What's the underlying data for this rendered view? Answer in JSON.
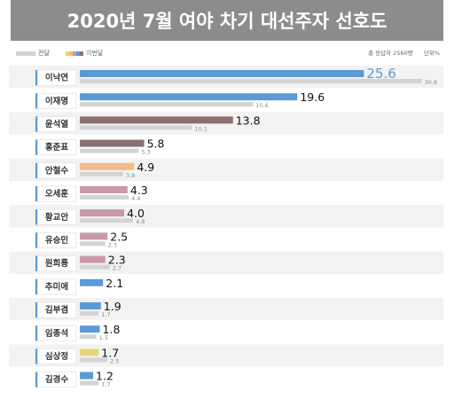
{
  "header": {
    "title": "2020년 7월 여야 차기 대선주자 선호도"
  },
  "legend": {
    "prev_label": "전달",
    "curr_label": "이번달",
    "prev_color": "#d3d3d3",
    "curr_colors": [
      "#e8d47a",
      "#f5b98a",
      "#c99aa5",
      "#5b9bd5",
      "#8a7070"
    ]
  },
  "meta": {
    "respondents": "총 응답자 2560명",
    "unit": "단위%"
  },
  "chart_data": {
    "type": "bar",
    "orientation": "horizontal",
    "title": "2020년 7월 여야 차기 대선주자 선호도",
    "categories": [
      "이낙연",
      "이재명",
      "윤석열",
      "홍준표",
      "안철수",
      "오세훈",
      "황교안",
      "유승민",
      "원희룡",
      "추미애",
      "김부겸",
      "임종석",
      "심상정",
      "김경수"
    ],
    "series": [
      {
        "name": "이번달",
        "values": [
          25.6,
          19.6,
          13.8,
          5.8,
          4.9,
          4.3,
          4.0,
          2.5,
          2.3,
          2.1,
          1.9,
          1.8,
          1.7,
          1.2
        ],
        "labels": [
          "25.6",
          "19.6",
          "13.8",
          "5.8",
          "4.9",
          "4.3",
          "4.0",
          "2.5",
          "2.3",
          "2.1",
          "1.9",
          "1.8",
          "1.7",
          "1.2"
        ],
        "colors": [
          "#5b9bd5",
          "#5b9bd5",
          "#8a7070",
          "#8a7070",
          "#f5b98a",
          "#c99aa5",
          "#c99aa5",
          "#c99aa5",
          "#c99aa5",
          "#5b9bd5",
          "#5b9bd5",
          "#5b9bd5",
          "#e8d47a",
          "#5b9bd5"
        ]
      },
      {
        "name": "전달",
        "values": [
          30.8,
          15.6,
          10.1,
          5.3,
          3.9,
          4.4,
          4.8,
          2.3,
          2.7,
          null,
          1.7,
          1.5,
          2.5,
          1.7
        ],
        "labels": [
          "30.8",
          "15.6",
          "10.1",
          "5.3",
          "3.9",
          "4.4",
          "4.8",
          "2.3",
          "2.7",
          "",
          "1.7",
          "1.5",
          "2.5",
          "1.7"
        ],
        "color": "#d3d3d3"
      }
    ],
    "highlight_color": "#5b9bd5",
    "row_colors": [
      "#f2f2f2",
      "#ffffff"
    ],
    "xlim": [
      0,
      31
    ],
    "grid": false,
    "legend": "top-left"
  }
}
